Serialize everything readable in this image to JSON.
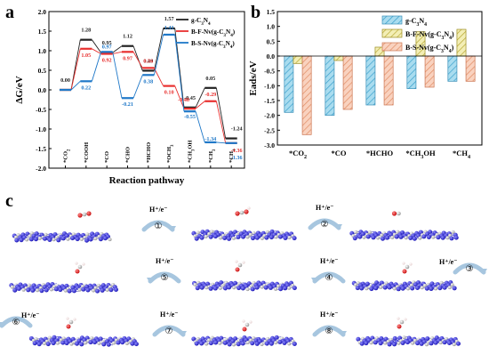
{
  "figure": {
    "panel_a": "a",
    "panel_b": "b",
    "panel_c": "c"
  },
  "chart_data": [
    {
      "type": "line",
      "ylabel": "ΔG/eV",
      "xlabel": "Reaction pathway",
      "ylim": [
        -2.0,
        2.0
      ],
      "yticks": [
        "2.0",
        "1.5",
        "1.0",
        "0.5",
        "0.0",
        "-0.5",
        "-1.0",
        "-1.5",
        "-2.0"
      ],
      "steps": [
        "*CO2",
        "*COOH",
        "*CO",
        "*CHO",
        "*HCHO",
        "*OCH3",
        "*CH3OH",
        "*CH3",
        "*CH4"
      ],
      "legend_position": "top-right",
      "series": [
        {
          "name": "g-C3N4",
          "color": "#222222",
          "values": [
            0.0,
            1.28,
            0.95,
            1.12,
            0.49,
            1.57,
            -0.45,
            0.05,
            -1.24
          ],
          "labels": [
            "0.00",
            "1.28",
            "0.95",
            "1.12",
            "0.49",
            "1.57",
            "-0.45",
            "0.05",
            "-1.24"
          ]
        },
        {
          "name": "B-F-Nv(g-C3N4)",
          "color": "#e8302f",
          "values": [
            0.0,
            1.05,
            0.92,
            0.97,
            0.56,
            0.1,
            -0.48,
            -0.29,
            -1.36
          ],
          "labels": [
            "",
            "1.05",
            "0.92",
            "0.97",
            "0.56",
            "0.10",
            "-0.48",
            "-0.29",
            "-1.36"
          ]
        },
        {
          "name": "B-S-Nv(g-C3N4)",
          "color": "#1f78c8",
          "values": [
            0.0,
            0.22,
            0.97,
            -0.21,
            0.38,
            1.41,
            -0.55,
            -1.34,
            -1.36
          ],
          "labels": [
            "",
            "0.22",
            "0.97",
            "-0.21",
            "0.38",
            "1.41",
            "-0.55",
            "-1.34",
            "-1.36"
          ]
        }
      ]
    },
    {
      "type": "bar",
      "ylabel": "Eads/eV",
      "ylim": [
        -3.0,
        1.5
      ],
      "yticks": [
        "1.5",
        "1.0",
        "0.5",
        "0.0",
        "-0.5",
        "-1.0",
        "-1.5",
        "-2.0",
        "-2.5",
        "-3.0"
      ],
      "categories": [
        "*CO2",
        "*CO",
        "*HCHO",
        "*CH3OH",
        "*CH4"
      ],
      "legend_position": "top-right",
      "series": [
        {
          "name": "g-C3N4",
          "color": "#7ec8e3",
          "values": [
            -1.9,
            -2.0,
            -1.65,
            -1.1,
            -0.85
          ]
        },
        {
          "name": "B-F-Nv(g-C3N4)",
          "color": "#e8e08a",
          "values": [
            -0.25,
            -0.15,
            0.3,
            0.82,
            0.9
          ]
        },
        {
          "name": "B-S-Nv(g-C3N4)",
          "color": "#f4b89a",
          "values": [
            -2.65,
            -1.8,
            -1.65,
            -1.05,
            -0.85
          ]
        }
      ]
    }
  ],
  "pathway": {
    "step_label": "H⁺/e⁻",
    "steps": [
      "①",
      "②",
      "③",
      "④",
      "⑤",
      "⑥",
      "⑦",
      "⑧"
    ]
  }
}
